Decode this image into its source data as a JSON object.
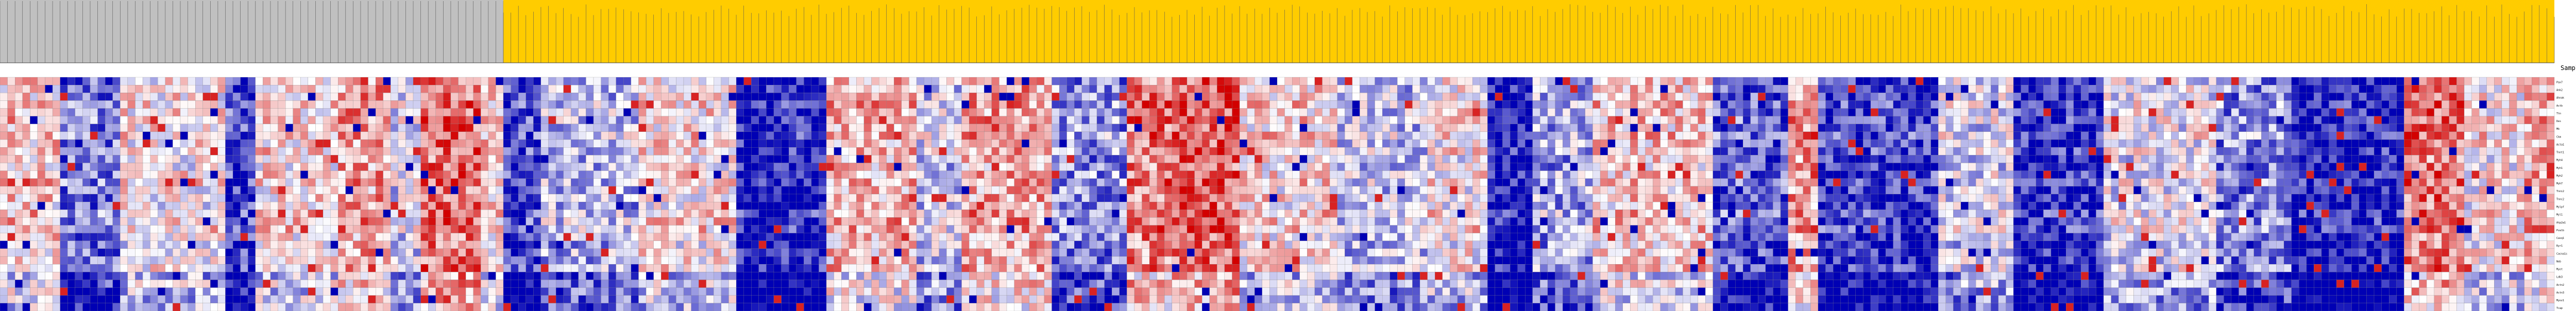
{
  "chart_data": {
    "type": "heatmap",
    "title": "",
    "xlabel": "",
    "ylabel": "",
    "corner_label": "SampleNam",
    "n_rows": 30,
    "n_columns": 340,
    "group_colors": {
      "group_a": "#c0c0c0",
      "group_b": "#ffcc00"
    },
    "column_groups": [
      {
        "group": "group_a",
        "first_column": 0,
        "column_count": 67
      },
      {
        "group": "group_b",
        "first_column": 67,
        "column_count": 273
      }
    ],
    "value_range": [
      -3,
      3
    ],
    "colors": {
      "low": "#0000b4",
      "mid": "#ffffff",
      "high": "#d20000",
      "grid": "#808080"
    },
    "row_labels": [
      "Pax7",
      "Ank2",
      "Ahnak",
      "Actb",
      "Ttn",
      "Des",
      "Mb",
      "Ckm",
      "Acta1",
      "Tnnt1",
      "Myh4",
      "Myh1",
      "Myh2",
      "Myh7",
      "Tnni2",
      "Tnnc2",
      "Mylpf",
      "Myl1",
      "Atp2a1",
      "Pvalb",
      "Casq1",
      "Ryr1",
      "Cacna1s",
      "Neb",
      "Myot",
      "Ldb3",
      "Actn2",
      "Actn3",
      "Myoz1",
      "Tcap"
    ],
    "column_band_profile": [
      [
        0,
        0.6
      ],
      [
        8,
        -1.6
      ],
      [
        16,
        0.2
      ],
      [
        30,
        -2.1
      ],
      [
        34,
        0.4
      ],
      [
        45,
        1.2
      ],
      [
        52,
        -0.3
      ],
      [
        56,
        1.8
      ],
      [
        64,
        0.5
      ],
      [
        67,
        -2.2
      ],
      [
        72,
        -0.8
      ],
      [
        85,
        0.3
      ],
      [
        98,
        -2.6
      ],
      [
        110,
        0.9
      ],
      [
        122,
        -0.5
      ],
      [
        128,
        1.1
      ],
      [
        140,
        -1.3
      ],
      [
        150,
        1.6
      ],
      [
        156,
        2.0
      ],
      [
        165,
        0.4
      ],
      [
        178,
        -0.7
      ],
      [
        190,
        0.2
      ],
      [
        198,
        -2.8
      ],
      [
        204,
        -1.0
      ],
      [
        212,
        0.6
      ],
      [
        228,
        -1.9
      ],
      [
        238,
        1.3
      ],
      [
        242,
        -2.3
      ],
      [
        258,
        -0.4
      ],
      [
        268,
        -2.5
      ],
      [
        280,
        -0.2
      ],
      [
        295,
        -1.4
      ],
      [
        305,
        -2.7
      ],
      [
        320,
        1.7
      ],
      [
        328,
        0.2
      ],
      [
        336,
        1.0
      ],
      [
        340,
        0.0
      ]
    ]
  }
}
